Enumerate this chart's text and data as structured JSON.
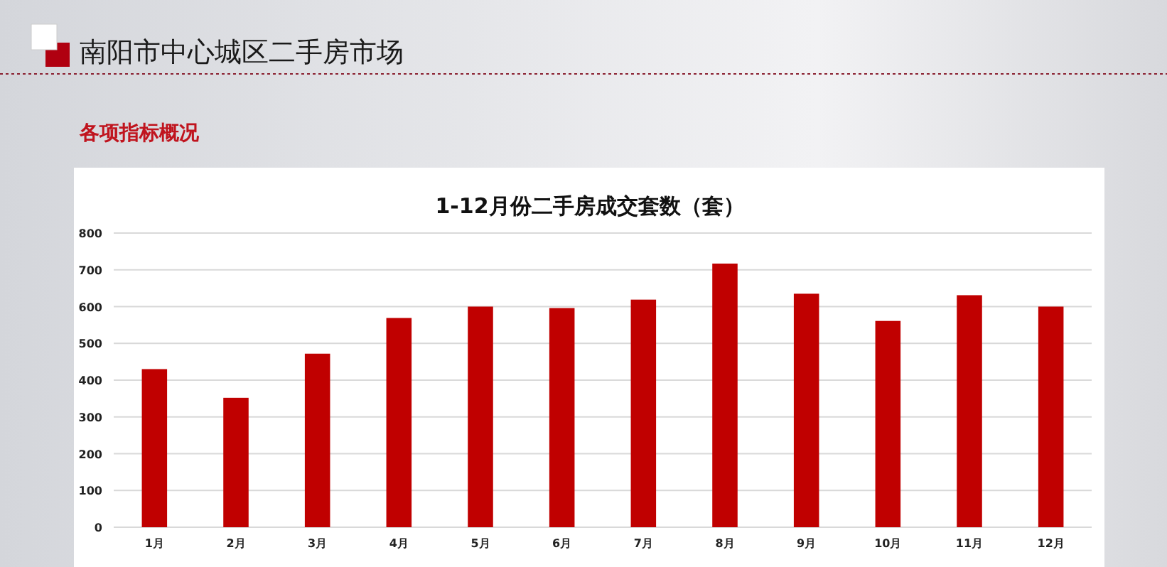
{
  "chart_data": {
    "type": "bar",
    "title": "南阳市中心城区二手房市场",
    "subtitle": "各项指标概况",
    "annotations": [
      "1-12月份二手房成交套数（套）"
    ],
    "categories": [
      "1月",
      "2月",
      "3月",
      "4月",
      "5月",
      "6月",
      "7月",
      "8月",
      "9月",
      "10月",
      "11月",
      "12月"
    ],
    "values": [
      430,
      352,
      472,
      569,
      600,
      596,
      619,
      717,
      635,
      561,
      631,
      600
    ],
    "color": "#c00000",
    "ylim": [
      0,
      800
    ],
    "yticks": [
      0,
      100,
      200,
      300,
      400,
      500,
      600,
      700,
      800
    ],
    "grid": "y"
  }
}
